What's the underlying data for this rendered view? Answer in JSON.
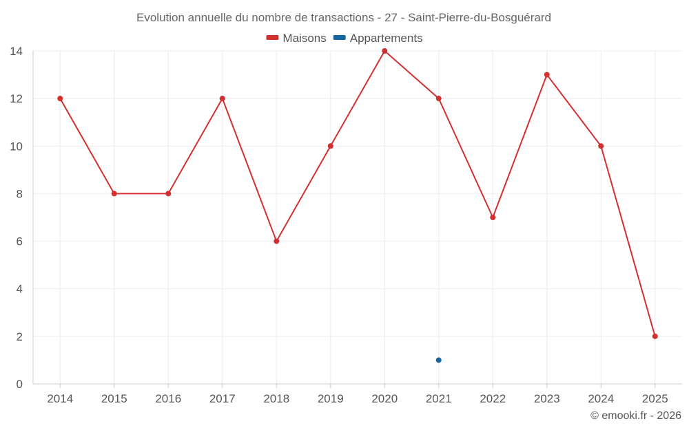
{
  "chart_data": {
    "type": "line",
    "title": "Evolution annuelle du nombre de transactions - 27 - Saint-Pierre-du-Bosguérard",
    "categories": [
      "2014",
      "2015",
      "2016",
      "2017",
      "2018",
      "2019",
      "2020",
      "2021",
      "2022",
      "2023",
      "2024",
      "2025"
    ],
    "ylim": [
      0,
      14
    ],
    "yticks": [
      0,
      2,
      4,
      6,
      8,
      10,
      12,
      14
    ],
    "grid": true,
    "legend_position": "top-center",
    "series": [
      {
        "name": "Maisons",
        "color": "#d32f2f",
        "values": [
          12,
          8,
          8,
          12,
          6,
          10,
          14,
          12,
          7,
          13,
          10,
          2
        ]
      },
      {
        "name": "Appartements",
        "color": "#1565a0",
        "values": [
          null,
          null,
          null,
          null,
          null,
          null,
          null,
          1,
          null,
          null,
          null,
          null
        ]
      }
    ],
    "xlabel": "",
    "ylabel": ""
  },
  "credit": "© emooki.fr - 2026"
}
